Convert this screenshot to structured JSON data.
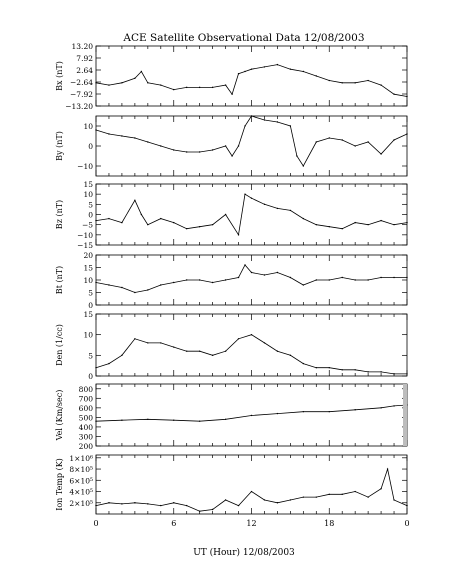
{
  "chart_data": {
    "type": "line",
    "title": "ACE Satellite Observational Data   12/08/2003",
    "xlabel": "UT (Hour)   12/08/2003",
    "x_ticks": [
      "0",
      "6",
      "12",
      "18",
      "0"
    ],
    "xlim": [
      0,
      24
    ],
    "grid": false,
    "panels": [
      {
        "id": "bx",
        "ylabel": "Bx (nT)",
        "ylim": [
          -13.2,
          13.2
        ],
        "y_ticks": [
          13.2,
          7.92,
          2.64,
          -2.64,
          -7.92,
          -13.2
        ],
        "y_tick_labels": [
          "13.20",
          "7.92",
          "2.64",
          "−2.64",
          "−7.92",
          "−13.20"
        ],
        "x": [
          0,
          1,
          2,
          3,
          3.5,
          4,
          5,
          6,
          7,
          8,
          9,
          10,
          10.5,
          11,
          11.5,
          12,
          13,
          14,
          15,
          16,
          17,
          18,
          19,
          20,
          21,
          22,
          23,
          24
        ],
        "values": [
          -3,
          -4,
          -3,
          -1,
          2,
          -3,
          -4,
          -6,
          -5,
          -5,
          -5,
          -4,
          -8,
          1,
          2,
          3,
          4,
          5,
          3,
          2,
          0,
          -2,
          -3,
          -3,
          -2,
          -4,
          -8,
          -9
        ]
      },
      {
        "id": "by",
        "ylabel": "By (nT)",
        "ylim": [
          -15,
          15
        ],
        "y_ticks": [
          10,
          0,
          -10
        ],
        "y_tick_labels": [
          "10",
          "0",
          "−10"
        ],
        "x": [
          0,
          1,
          2,
          3,
          4,
          5,
          6,
          7,
          8,
          9,
          10,
          10.5,
          11,
          11.5,
          12,
          13,
          14,
          15,
          15.5,
          16,
          17,
          18,
          19,
          20,
          21,
          22,
          23,
          24
        ],
        "values": [
          8,
          6,
          5,
          4,
          2,
          0,
          -2,
          -3,
          -3,
          -2,
          0,
          -5,
          0,
          10,
          15,
          13,
          12,
          10,
          -5,
          -10,
          2,
          4,
          3,
          0,
          2,
          -4,
          3,
          6
        ]
      },
      {
        "id": "bz",
        "ylabel": "Bz (nT)",
        "ylim": [
          -15,
          15
        ],
        "y_ticks": [
          15,
          10,
          5,
          0,
          -5,
          -10,
          -15
        ],
        "y_tick_labels": [
          "15",
          "10",
          "5",
          "0",
          "−5",
          "−10",
          "−15"
        ],
        "x": [
          0,
          1,
          2,
          3,
          3.5,
          4,
          5,
          6,
          7,
          8,
          9,
          10,
          11,
          11.5,
          12,
          13,
          14,
          15,
          16,
          17,
          18,
          19,
          20,
          21,
          22,
          23,
          24
        ],
        "values": [
          -3,
          -2,
          -4,
          7,
          0,
          -5,
          -2,
          -4,
          -7,
          -6,
          -5,
          0,
          -10,
          10,
          8,
          5,
          3,
          2,
          -2,
          -5,
          -6,
          -7,
          -4,
          -5,
          -3,
          -5,
          -4
        ]
      },
      {
        "id": "bt",
        "ylabel": "Bt (nT)",
        "ylim": [
          0,
          20
        ],
        "y_ticks": [
          20,
          15,
          10,
          5,
          0
        ],
        "y_tick_labels": [
          "20",
          "15",
          "10",
          "5",
          "0"
        ],
        "x": [
          0,
          1,
          2,
          3,
          4,
          5,
          6,
          7,
          8,
          9,
          10,
          11,
          11.5,
          12,
          13,
          14,
          15,
          16,
          17,
          18,
          19,
          20,
          21,
          22,
          23,
          24
        ],
        "values": [
          9,
          8,
          7,
          5,
          6,
          8,
          9,
          10,
          10,
          9,
          10,
          11,
          16,
          13,
          12,
          13,
          11,
          8,
          10,
          10,
          11,
          10,
          10,
          11,
          11,
          11
        ]
      },
      {
        "id": "den",
        "ylabel": "Den (1/cc)",
        "ylim": [
          0,
          15
        ],
        "y_ticks": [
          15,
          10,
          5,
          0
        ],
        "y_tick_labels": [
          "15",
          "10",
          "5",
          "0"
        ],
        "x": [
          0,
          1,
          2,
          3,
          4,
          5,
          6,
          7,
          8,
          9,
          10,
          11,
          12,
          13,
          14,
          15,
          16,
          17,
          18,
          19,
          20,
          21,
          22,
          23,
          24
        ],
        "values": [
          2,
          3,
          5,
          9,
          8,
          8,
          7,
          6,
          6,
          5,
          6,
          9,
          10,
          8,
          6,
          5,
          3,
          2,
          2,
          1.5,
          1.5,
          1,
          1,
          0.5,
          0.5
        ]
      },
      {
        "id": "vel",
        "ylabel": "Vel (Km/sec)",
        "ylim": [
          200,
          850
        ],
        "y_ticks": [
          800,
          700,
          600,
          500,
          400,
          300,
          200
        ],
        "y_tick_labels": [
          "800",
          "700",
          "600",
          "500",
          "400",
          "300",
          "200"
        ],
        "x": [
          0,
          2,
          4,
          6,
          8,
          10,
          12,
          14,
          16,
          18,
          20,
          22,
          23,
          24
        ],
        "values": [
          460,
          470,
          480,
          470,
          460,
          480,
          520,
          540,
          560,
          560,
          580,
          600,
          620,
          630
        ]
      },
      {
        "id": "temp",
        "ylabel": "Ion Temp (K)",
        "ylim": [
          0,
          1050000
        ],
        "y_ticks": [
          1000000,
          800000,
          600000,
          400000,
          200000
        ],
        "y_tick_labels": [
          "1×10⁶",
          "8×10⁵",
          "6×10⁵",
          "4×10⁵",
          "2×10⁵"
        ],
        "x": [
          0,
          1,
          2,
          3,
          4,
          5,
          6,
          7,
          8,
          9,
          10,
          11,
          12,
          13,
          14,
          15,
          16,
          17,
          18,
          19,
          20,
          21,
          22,
          22.5,
          23,
          24
        ],
        "values": [
          150000,
          200000,
          180000,
          200000,
          180000,
          150000,
          200000,
          150000,
          50000,
          80000,
          250000,
          150000,
          400000,
          250000,
          200000,
          250000,
          300000,
          300000,
          350000,
          350000,
          400000,
          300000,
          450000,
          800000,
          250000,
          150000
        ]
      }
    ]
  }
}
